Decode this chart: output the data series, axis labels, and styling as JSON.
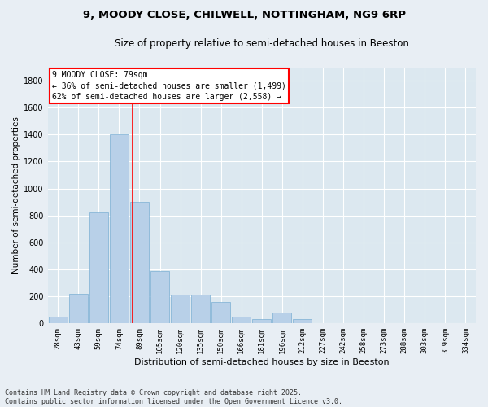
{
  "title_line1": "9, MOODY CLOSE, CHILWELL, NOTTINGHAM, NG9 6RP",
  "title_line2": "Size of property relative to semi-detached houses in Beeston",
  "xlabel": "Distribution of semi-detached houses by size in Beeston",
  "ylabel": "Number of semi-detached properties",
  "categories": [
    "28sqm",
    "43sqm",
    "59sqm",
    "74sqm",
    "89sqm",
    "105sqm",
    "120sqm",
    "135sqm",
    "150sqm",
    "166sqm",
    "181sqm",
    "196sqm",
    "212sqm",
    "227sqm",
    "242sqm",
    "258sqm",
    "273sqm",
    "288sqm",
    "303sqm",
    "319sqm",
    "334sqm"
  ],
  "values": [
    50,
    220,
    820,
    1400,
    900,
    390,
    215,
    215,
    160,
    50,
    30,
    80,
    30,
    5,
    0,
    0,
    0,
    5,
    0,
    0,
    0
  ],
  "bar_color": "#b8d0e8",
  "bar_edgecolor": "#7bafd4",
  "ylim": [
    0,
    1900
  ],
  "yticks": [
    0,
    200,
    400,
    600,
    800,
    1000,
    1200,
    1400,
    1600,
    1800
  ],
  "red_line_x": 3.67,
  "annotation_title": "9 MOODY CLOSE: 79sqm",
  "annotation_line1": "← 36% of semi-detached houses are smaller (1,499)",
  "annotation_line2": "62% of semi-detached houses are larger (2,558) →",
  "footer_line1": "Contains HM Land Registry data © Crown copyright and database right 2025.",
  "footer_line2": "Contains public sector information licensed under the Open Government Licence v3.0.",
  "background_color": "#e8eef4",
  "plot_background": "#dce8f0",
  "grid_color": "#ffffff",
  "title_fontsize": 9.5,
  "subtitle_fontsize": 8.5,
  "ylabel_fontsize": 7.5,
  "xlabel_fontsize": 8,
  "tick_fontsize": 6.5,
  "annotation_fontsize": 7,
  "footer_fontsize": 6
}
